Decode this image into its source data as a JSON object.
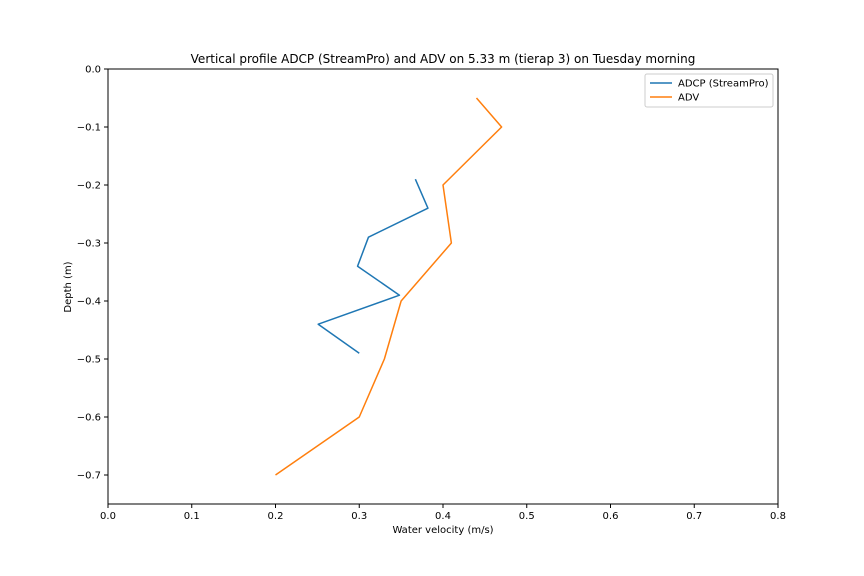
{
  "chart_data": {
    "type": "line",
    "title": "Vertical profile ADCP (StreamPro) and ADV on 5.33 m (tierap 3) on Tuesday morning",
    "xlabel": "Water velocity (m/s)",
    "ylabel": "Depth (m)",
    "xlim": [
      0.0,
      0.8
    ],
    "ylim": [
      -0.75,
      0.0
    ],
    "xticks": [
      "0.0",
      "0.1",
      "0.2",
      "0.3",
      "0.4",
      "0.5",
      "0.6",
      "0.7",
      "0.8"
    ],
    "xtick_values": [
      0.0,
      0.1,
      0.2,
      0.3,
      0.4,
      0.5,
      0.6,
      0.7,
      0.8
    ],
    "yticks": [
      "0.0",
      "−0.1",
      "−0.2",
      "−0.3",
      "−0.4",
      "−0.5",
      "−0.6",
      "−0.7"
    ],
    "ytick_values": [
      0.0,
      -0.1,
      -0.2,
      -0.3,
      -0.4,
      -0.5,
      -0.6,
      -0.7
    ],
    "grid": false,
    "legend_position": "top-right",
    "series": [
      {
        "name": "ADCP (StreamPro)",
        "color": "#1f77b4",
        "points": [
          {
            "x": 0.367,
            "y": -0.19
          },
          {
            "x": 0.382,
            "y": -0.24
          },
          {
            "x": 0.311,
            "y": -0.29
          },
          {
            "x": 0.298,
            "y": -0.34
          },
          {
            "x": 0.348,
            "y": -0.39
          },
          {
            "x": 0.251,
            "y": -0.44
          },
          {
            "x": 0.3,
            "y": -0.49
          }
        ]
      },
      {
        "name": "ADV",
        "color": "#ff7f0e",
        "points": [
          {
            "x": 0.44,
            "y": -0.05
          },
          {
            "x": 0.47,
            "y": -0.1
          },
          {
            "x": 0.4,
            "y": -0.2
          },
          {
            "x": 0.41,
            "y": -0.3
          },
          {
            "x": 0.35,
            "y": -0.4
          },
          {
            "x": 0.33,
            "y": -0.5
          },
          {
            "x": 0.3,
            "y": -0.6
          },
          {
            "x": 0.2,
            "y": -0.7
          }
        ]
      }
    ]
  }
}
